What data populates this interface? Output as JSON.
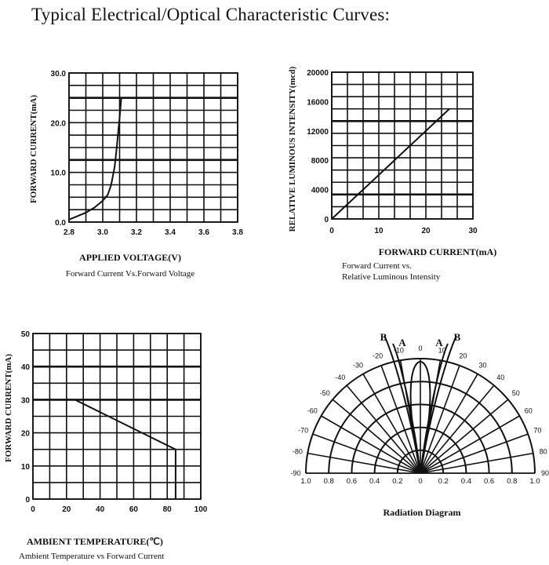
{
  "page": {
    "title": "Typical Electrical/Optical Characteristic Curves:"
  },
  "chart_data": [
    {
      "id": "iv",
      "type": "line",
      "xlabel": "APPLIED VOLTAGE(V)",
      "ylabel": "FORWARD CURRENT(mA)",
      "caption": "Forward Current Vs.Forward Voltage",
      "xlim": [
        2.8,
        3.8
      ],
      "ylim": [
        0,
        30
      ],
      "xticks": [
        "2.8",
        "3.0",
        "3.2",
        "3.4",
        "3.6",
        "3.8"
      ],
      "yticks": [
        "0.0",
        "10.0",
        "20.0",
        "30.0"
      ],
      "grid": true,
      "series": [
        {
          "x": [
            2.8,
            2.85,
            2.9,
            2.95,
            3.0,
            3.03,
            3.05,
            3.07,
            3.08,
            3.09,
            3.1,
            3.11
          ],
          "values": [
            0.5,
            1.2,
            1.9,
            2.9,
            4.3,
            5.5,
            7.5,
            11.0,
            14.0,
            17.5,
            21.0,
            25.0
          ]
        }
      ]
    },
    {
      "id": "lum",
      "type": "line",
      "xlabel": "FORWARD CURRENT(mA)",
      "ylabel": "RELATIVE LUMINOUS INTENSITY(mcd)",
      "caption_lines": [
        "Forward Current vs.",
        "Relative Luminous Intensity"
      ],
      "xlim": [
        0,
        30
      ],
      "ylim": [
        0,
        20000
      ],
      "xticks": [
        "0",
        "10",
        "20",
        "30"
      ],
      "yticks": [
        "0",
        "4000",
        "8000",
        "12000",
        "16000",
        "20000"
      ],
      "grid": true,
      "series": [
        {
          "x": [
            0,
            25
          ],
          "values": [
            0,
            15000
          ]
        }
      ]
    },
    {
      "id": "derate",
      "type": "line",
      "xlabel": "AMBIENT TEMPERATURE(℃)",
      "ylabel": "FORWARD CURRENT(mA)",
      "caption": "Ambient Temperature vs Forward Current",
      "xlim": [
        0,
        100
      ],
      "ylim": [
        0,
        50
      ],
      "xticks": [
        "0",
        "20",
        "40",
        "60",
        "80",
        "100"
      ],
      "yticks": [
        "0",
        "10",
        "20",
        "30",
        "40",
        "50"
      ],
      "grid": true,
      "series": [
        {
          "x": [
            0,
            25,
            85,
            85
          ],
          "values": [
            30,
            30,
            15,
            0
          ]
        }
      ]
    },
    {
      "id": "radiation",
      "type": "polar",
      "caption": "Radiation Diagram",
      "angle_labels_left": [
        "-10",
        "-20",
        "-30",
        "-40",
        "-50",
        "-60",
        "-70",
        "-80",
        "-90"
      ],
      "angle_labels_right": [
        "10",
        "20",
        "30",
        "40",
        "50",
        "60",
        "70",
        "80",
        "90"
      ],
      "angle_label_top": "0",
      "radial_ticks_left": [
        "1.0",
        "0.8",
        "0.6",
        "0.4",
        "0.2"
      ],
      "radial_tick_center": "0",
      "radial_ticks_right": [
        "0.2",
        "0.4",
        "0.6",
        "0.8",
        "1.0"
      ],
      "curve_labels": [
        "B",
        "A",
        "A",
        "B"
      ]
    }
  ]
}
